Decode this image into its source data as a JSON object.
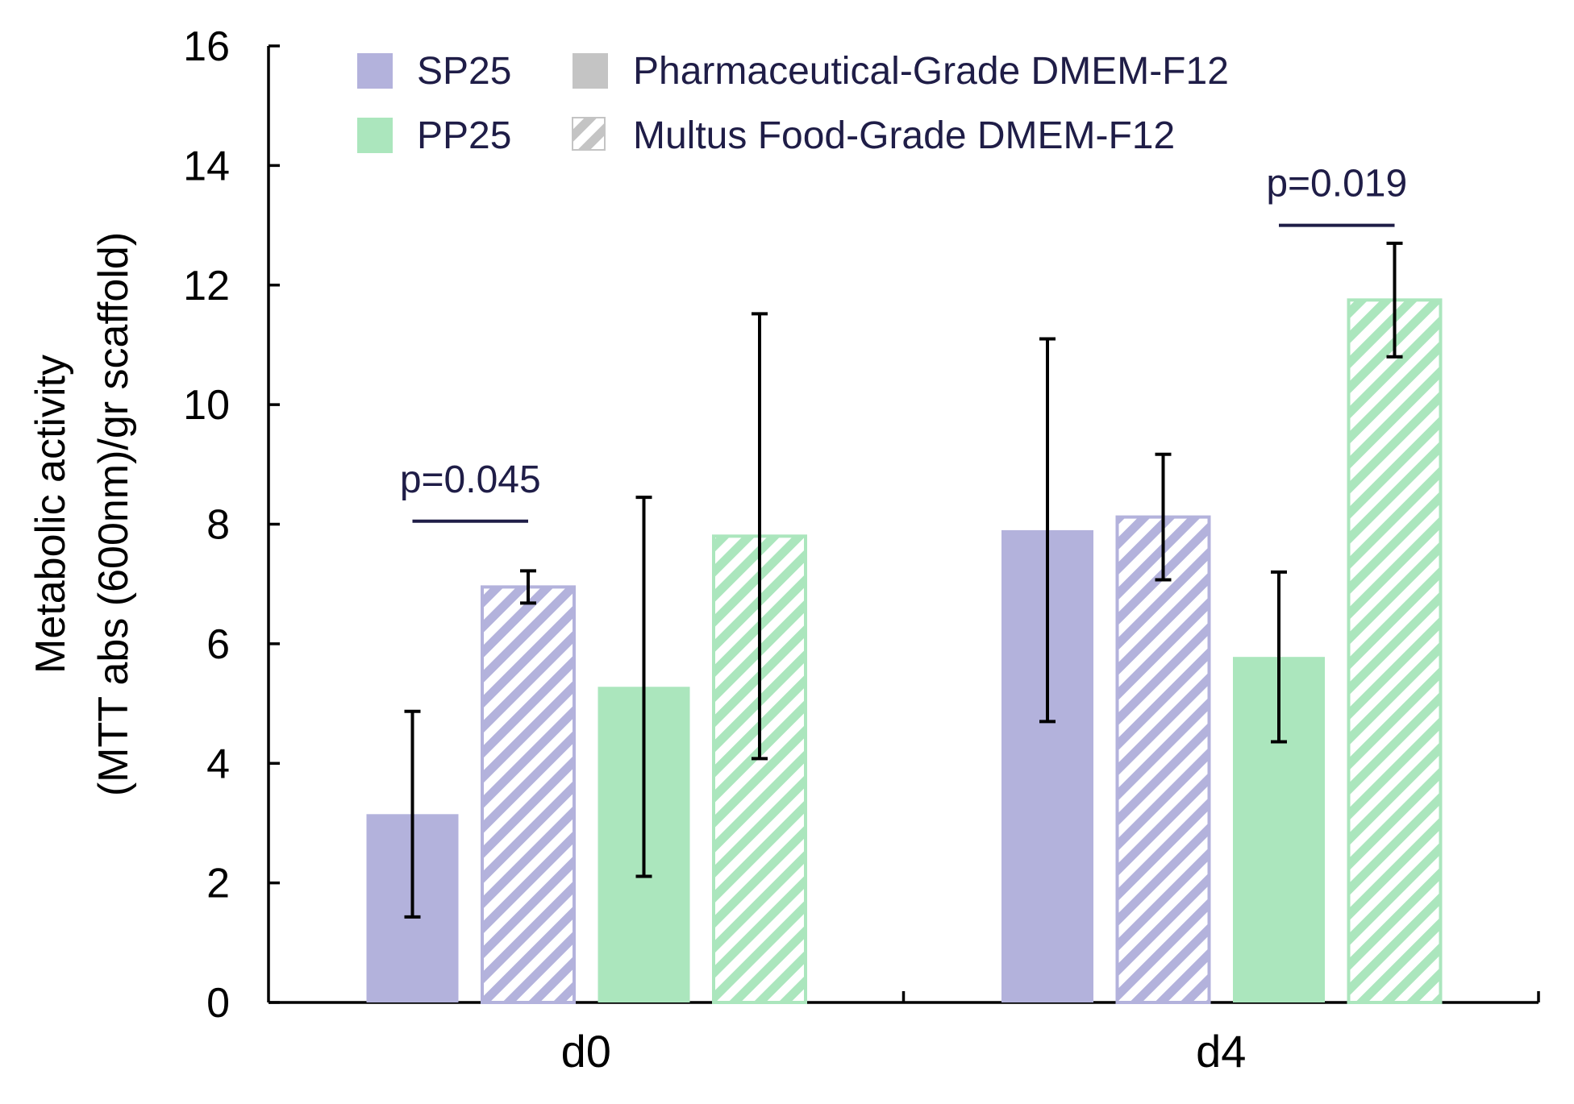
{
  "chart_data": {
    "type": "bar",
    "ylabel_line1": "Metabolic activity",
    "ylabel_line2": "(MTT abs (600nm)/gr scaffold)",
    "ylim": [
      0,
      16
    ],
    "yticks": [
      "0",
      "2",
      "4",
      "6",
      "8",
      "10",
      "12",
      "14",
      "16"
    ],
    "categories": [
      "d0",
      "d4"
    ],
    "series": [
      {
        "name": "SP25 · Pharmaceutical-Grade DMEM-F12",
        "cell": "SP25",
        "medium": "Pharmaceutical-Grade DMEM-F12",
        "values": [
          3.15,
          7.9
        ],
        "errors": [
          1.72,
          3.2
        ],
        "color": "#b3b2dc",
        "hatched": false
      },
      {
        "name": "SP25 · Multus Food-Grade DMEM-F12",
        "cell": "SP25",
        "medium": "Multus Food-Grade DMEM-F12",
        "values": [
          6.95,
          8.12
        ],
        "errors": [
          0.27,
          1.05
        ],
        "color": "#b3b2dc",
        "hatched": true
      },
      {
        "name": "PP25 · Pharmaceutical-Grade DMEM-F12",
        "cell": "PP25",
        "medium": "Pharmaceutical-Grade DMEM-F12",
        "values": [
          5.28,
          5.78
        ],
        "errors": [
          3.17,
          1.42
        ],
        "color": "#abe6bd",
        "hatched": false
      },
      {
        "name": "PP25 · Multus Food-Grade DMEM-F12",
        "cell": "PP25",
        "medium": "Multus Food-Grade DMEM-F12",
        "values": [
          7.8,
          11.75
        ],
        "errors": [
          3.72,
          0.95
        ],
        "color": "#abe6bd",
        "hatched": true
      }
    ],
    "annotations": [
      {
        "text": "p=0.045",
        "category": 0,
        "y": 8.05
      },
      {
        "text": "p=0.019",
        "category": 1,
        "y": 13.0
      }
    ],
    "legend": {
      "placement": "top",
      "color_items": [
        {
          "label": "SP25",
          "color": "#b3b2dc"
        },
        {
          "label": "PP25",
          "color": "#abe6bd"
        }
      ],
      "medium_items": [
        {
          "label": "Pharmaceutical-Grade DMEM-F12",
          "color": "#c4c4c4",
          "hatched": false
        },
        {
          "label": "Multus Food-Grade DMEM-F12",
          "color": "#c4c4c4",
          "hatched": true
        }
      ]
    },
    "colors": {
      "axis": "#000000",
      "errorbar": "#000000",
      "annotation": "#1f1d47",
      "legend_text": "#1f1d47"
    }
  }
}
